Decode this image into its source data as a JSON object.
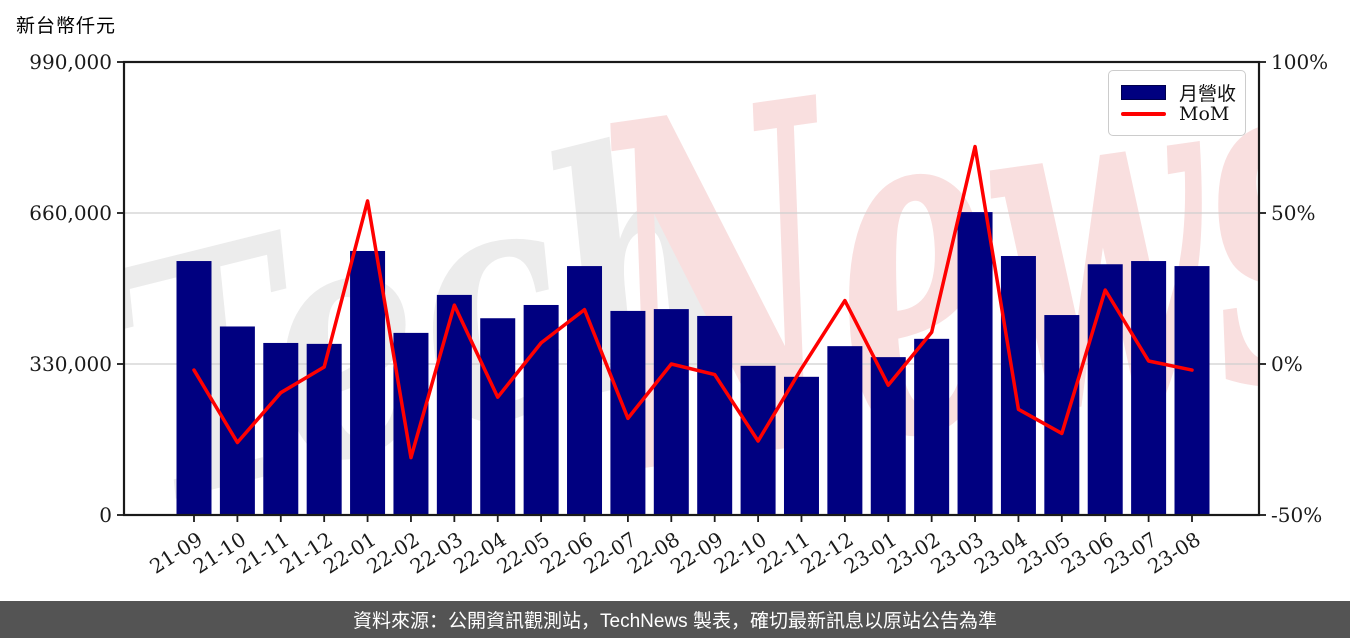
{
  "page": {
    "unit_label": "新台幣仟元",
    "caption": "資料來源：公開資訊觀測站，TechNews 製表，確切最新訊息以原站公告為準",
    "caption_bg": "#545454",
    "caption_color": "#ffffff",
    "background": "#ffffff"
  },
  "legend": {
    "position": "upper-right",
    "items": [
      {
        "label": "月營收",
        "type": "bar",
        "color": "#000080"
      },
      {
        "label": "MoM",
        "type": "line",
        "color": "#ff0000"
      }
    ]
  },
  "watermark": {
    "left_text": "Tech",
    "left_color": "#ececec",
    "right_text": "News",
    "right_color": "#f9dfdf"
  },
  "chart_data": {
    "type": "bar+line",
    "title": "",
    "xlabel": "",
    "ylabel_left": "新台幣仟元",
    "ylabel_right": "%",
    "grid": "horizontal-light",
    "legend_position": "upper-right",
    "categories": [
      "21-09",
      "21-10",
      "21-11",
      "21-12",
      "22-01",
      "22-02",
      "22-03",
      "22-04",
      "22-05",
      "22-06",
      "22-07",
      "22-08",
      "22-09",
      "22-10",
      "22-11",
      "22-12",
      "23-01",
      "23-02",
      "23-03",
      "23-04",
      "23-05",
      "23-06",
      "23-07",
      "23-08"
    ],
    "series": [
      {
        "name": "月營收",
        "type": "bar",
        "yaxis": "left",
        "unit": "NT$ thousand",
        "color": "#000080",
        "values": [
          555000,
          412000,
          376000,
          374000,
          577000,
          398000,
          481000,
          430000,
          459000,
          544000,
          446000,
          450000,
          435000,
          326000,
          302000,
          369000,
          345000,
          385000,
          662000,
          566000,
          437000,
          548000,
          555000,
          544000
        ]
      },
      {
        "name": "MoM",
        "type": "line",
        "yaxis": "right",
        "unit": "%",
        "color": "#ff0000",
        "values": [
          -2,
          -26,
          -9.5,
          -1,
          54,
          -31,
          19.5,
          -11,
          7,
          18,
          -18,
          0,
          -3.5,
          -25.5,
          -1.5,
          21,
          -7,
          10.5,
          72,
          -15,
          -23,
          24.5,
          1,
          -2
        ]
      }
    ],
    "left_axis": {
      "min": 0,
      "max": 990000,
      "tick_values": [
        0,
        330000,
        660000,
        990000
      ],
      "tick_labels": [
        "0",
        "330,000",
        "660,000",
        "990,000"
      ]
    },
    "right_axis": {
      "min": -50,
      "max": 100,
      "tick_values": [
        -50,
        0,
        50,
        100
      ],
      "tick_labels": [
        "-50%",
        "0%",
        "50%",
        "100%"
      ]
    }
  }
}
